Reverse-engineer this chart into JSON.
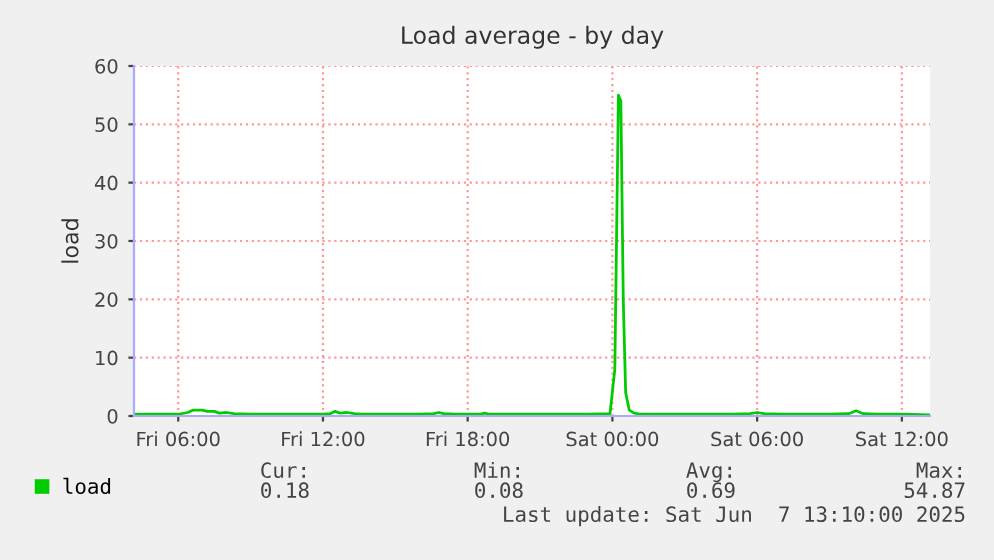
{
  "chart_data": {
    "type": "line",
    "title": "Load average - by day",
    "ylabel": "load",
    "xlim": [
      "2025-06-06T04:10",
      "2025-06-07T13:10"
    ],
    "xticks": [
      {
        "value": "2025-06-06T06:00",
        "label": "Fri 06:00"
      },
      {
        "value": "2025-06-06T12:00",
        "label": "Fri 12:00"
      },
      {
        "value": "2025-06-06T18:00",
        "label": "Fri 18:00"
      },
      {
        "value": "2025-06-07T00:00",
        "label": "Sat 00:00"
      },
      {
        "value": "2025-06-07T06:00",
        "label": "Sat 06:00"
      },
      {
        "value": "2025-06-07T12:00",
        "label": "Sat 12:00"
      }
    ],
    "ylim": [
      0,
      60
    ],
    "yticks": [
      0,
      10,
      20,
      30,
      40,
      50,
      60
    ],
    "grid": true,
    "legend": "bottom left",
    "marker": "none",
    "line_style": "solid",
    "series": [
      {
        "name": "load",
        "color": "#00cc00",
        "x": [
          "2025-06-06T04:10",
          "2025-06-06T05:00",
          "2025-06-06T06:00",
          "2025-06-06T06:24",
          "2025-06-06T06:36",
          "2025-06-06T07:00",
          "2025-06-06T07:12",
          "2025-06-06T07:30",
          "2025-06-06T07:42",
          "2025-06-06T08:00",
          "2025-06-06T08:18",
          "2025-06-06T09:00",
          "2025-06-06T10:00",
          "2025-06-06T11:00",
          "2025-06-06T12:00",
          "2025-06-06T12:18",
          "2025-06-06T12:30",
          "2025-06-06T12:42",
          "2025-06-06T13:00",
          "2025-06-06T13:18",
          "2025-06-06T13:36",
          "2025-06-06T14:00",
          "2025-06-06T15:00",
          "2025-06-06T16:00",
          "2025-06-06T16:36",
          "2025-06-06T16:48",
          "2025-06-06T17:00",
          "2025-06-06T17:30",
          "2025-06-06T18:00",
          "2025-06-06T18:30",
          "2025-06-06T18:42",
          "2025-06-06T18:54",
          "2025-06-06T19:30",
          "2025-06-06T20:00",
          "2025-06-06T21:00",
          "2025-06-06T22:00",
          "2025-06-06T23:00",
          "2025-06-06T23:54",
          "2025-06-07T00:06",
          "2025-06-07T00:15",
          "2025-06-07T00:21",
          "2025-06-07T00:27",
          "2025-06-07T00:33",
          "2025-06-07T00:42",
          "2025-06-07T00:54",
          "2025-06-07T01:12",
          "2025-06-07T02:00",
          "2025-06-07T03:00",
          "2025-06-07T04:00",
          "2025-06-07T05:00",
          "2025-06-07T05:42",
          "2025-06-07T06:00",
          "2025-06-07T06:18",
          "2025-06-07T07:00",
          "2025-06-07T08:00",
          "2025-06-07T09:00",
          "2025-06-07T09:48",
          "2025-06-07T10:06",
          "2025-06-07T10:24",
          "2025-06-07T11:00",
          "2025-06-07T12:00",
          "2025-06-07T13:10"
        ],
        "values": [
          0.3,
          0.3,
          0.3,
          0.6,
          1.0,
          1.0,
          0.8,
          0.8,
          0.5,
          0.6,
          0.4,
          0.3,
          0.3,
          0.3,
          0.3,
          0.4,
          0.8,
          0.5,
          0.6,
          0.4,
          0.3,
          0.3,
          0.3,
          0.3,
          0.4,
          0.6,
          0.4,
          0.3,
          0.3,
          0.3,
          0.5,
          0.3,
          0.3,
          0.3,
          0.3,
          0.3,
          0.3,
          0.4,
          8,
          55,
          54,
          20,
          4,
          1.0,
          0.5,
          0.3,
          0.3,
          0.3,
          0.3,
          0.3,
          0.4,
          0.6,
          0.4,
          0.3,
          0.3,
          0.3,
          0.4,
          0.9,
          0.4,
          0.3,
          0.3,
          0.2
        ]
      }
    ],
    "annotations": [
      "Cur:",
      "Min:",
      "Avg:",
      "Max:",
      "0.18",
      "0.08",
      "0.69",
      "54.87",
      "Last update: Sat Jun  7 13:10:00 2025"
    ]
  }
}
